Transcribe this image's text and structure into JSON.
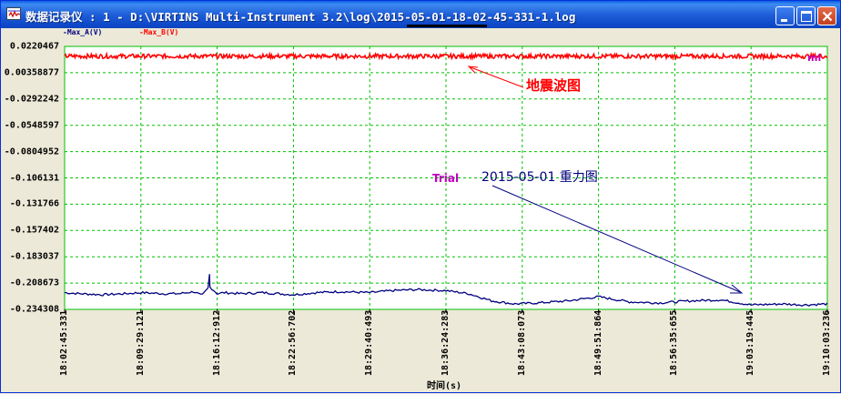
{
  "window": {
    "title": "数据记录仪 : 1 - D:\\VIRTINS Multi-Instrument 3.2\\log\\2015-05-01-18-02-45-331-1.log",
    "buttons": {
      "minimize": "minimize",
      "maximize": "maximize",
      "close": "close"
    }
  },
  "legend": {
    "a": "Max_A(V)",
    "b": "Max_B(V)",
    "colors": {
      "a": "#000080",
      "b": "#FF0000"
    }
  },
  "marker": "ml",
  "annotations": {
    "quake": "地震波图",
    "trial": "Trial",
    "gravity": "2015-05-01  重力图"
  },
  "chart_data": {
    "type": "line",
    "xlabel": "时间(s)",
    "ylabel": "",
    "ylim": [
      -0.234308,
      0.0220467
    ],
    "yticks": [
      "0.0220467",
      "0.00358877",
      "-0.0292242",
      "-0.0548597",
      "-0.0804952",
      "-0.106131",
      "-0.131766",
      "-0.157402",
      "-0.183037",
      "-0.208673",
      "-0.234308"
    ],
    "xticks": [
      "18:02:45:331",
      "18:09:29:121",
      "18:16:12:912",
      "18:22:56:702",
      "18:29:40:493",
      "18:36:24:283",
      "18:43:08:073",
      "18:49:51:864",
      "18:56:35:655",
      "19:03:19:445",
      "19:10:03:236"
    ],
    "grid": true,
    "grid_color": "#00C000",
    "series": [
      {
        "name": "Max_A(V)",
        "color": "#000080",
        "x": [
          0,
          0.02,
          0.05,
          0.08,
          0.1,
          0.13,
          0.15,
          0.17,
          0.18,
          0.19,
          0.2,
          0.21,
          0.23,
          0.26,
          0.3,
          0.33,
          0.36,
          0.4,
          0.43,
          0.46,
          0.5,
          0.53,
          0.56,
          0.59,
          0.62,
          0.66,
          0.7,
          0.74,
          0.78,
          0.82,
          0.86,
          0.9,
          0.94,
          0.97,
          1.0
        ],
        "values": [
          -0.218,
          -0.219,
          -0.22,
          -0.219,
          -0.218,
          -0.219,
          -0.219,
          -0.217,
          -0.221,
          -0.212,
          -0.219,
          -0.218,
          -0.219,
          -0.218,
          -0.22,
          -0.218,
          -0.217,
          -0.218,
          -0.216,
          -0.215,
          -0.216,
          -0.219,
          -0.226,
          -0.229,
          -0.228,
          -0.226,
          -0.222,
          -0.227,
          -0.228,
          -0.226,
          -0.225,
          -0.23,
          -0.229,
          -0.23,
          -0.229
        ]
      },
      {
        "name": "Max_B(V)",
        "color": "#FF0000",
        "x": [
          0,
          1.0
        ],
        "values": [
          0.0125,
          0.0125
        ]
      }
    ]
  }
}
